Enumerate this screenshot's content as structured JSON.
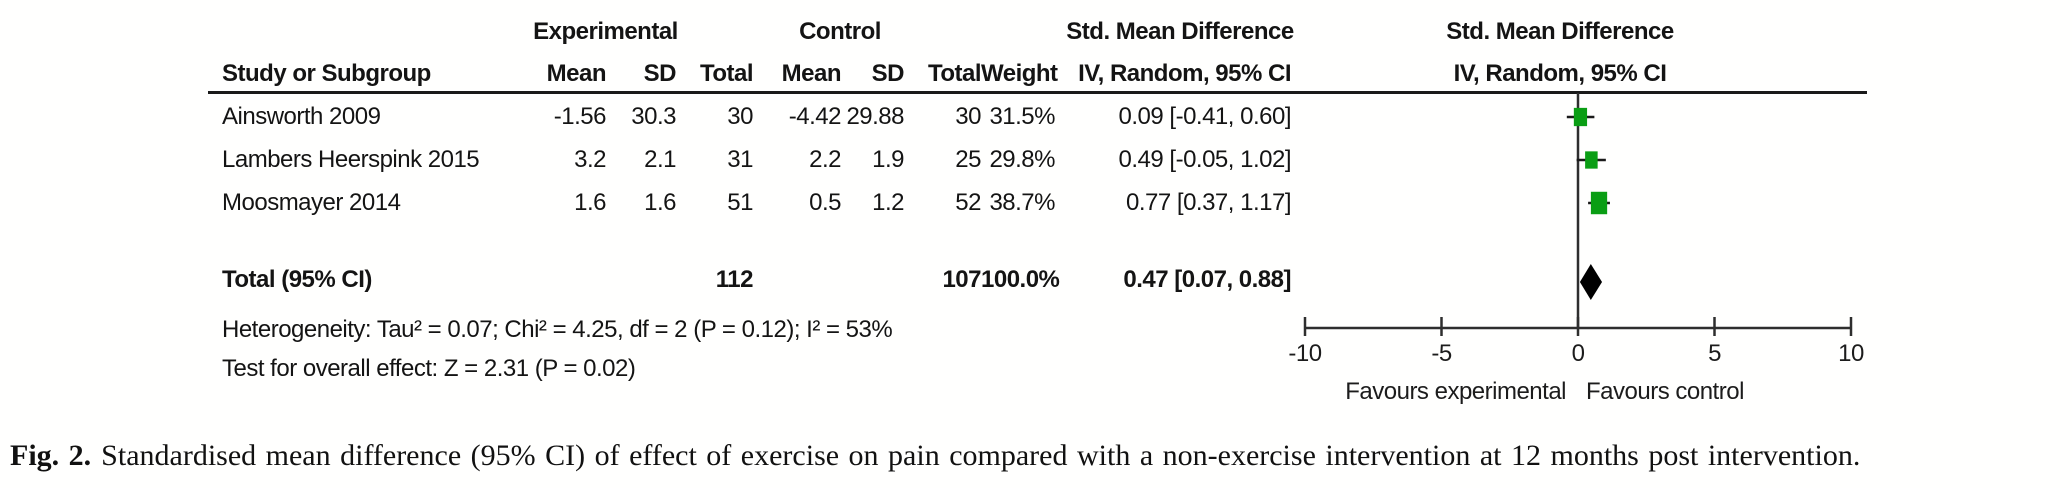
{
  "figure": {
    "caption_label": "Fig. 2.",
    "caption_text": "Standardised mean difference (95% CI) of effect of exercise on pain compared with a non-exercise intervention at 12 months post intervention."
  },
  "table": {
    "group_headers": {
      "experimental": "Experimental",
      "control": "Control",
      "smd_text_col": "Std. Mean Difference"
    },
    "col_headers": {
      "study": "Study or Subgroup",
      "mean": "Mean",
      "sd": "SD",
      "total": "Total",
      "mean2": "Mean",
      "sd2": "SD",
      "total2": "Total",
      "weight": "Weight",
      "ci": "IV, Random, 95% CI"
    },
    "rows": [
      {
        "study": "Ainsworth 2009",
        "mean_e": "-1.56",
        "sd_e": "30.3",
        "total_e": "30",
        "mean_c": "-4.42",
        "sd_c": "29.88",
        "total_c": "30",
        "weight": "31.5%",
        "ci_text": "0.09 [-0.41, 0.60]"
      },
      {
        "study": "Lambers Heerspink 2015",
        "mean_e": "3.2",
        "sd_e": "2.1",
        "total_e": "31",
        "mean_c": "2.2",
        "sd_c": "1.9",
        "total_c": "25",
        "weight": "29.8%",
        "ci_text": "0.49 [-0.05, 1.02]"
      },
      {
        "study": "Moosmayer 2014",
        "mean_e": "1.6",
        "sd_e": "1.6",
        "total_e": "51",
        "mean_c": "0.5",
        "sd_c": "1.2",
        "total_c": "52",
        "weight": "38.7%",
        "ci_text": "0.77 [0.37, 1.17]"
      }
    ],
    "total_row": {
      "label": "Total (95% CI)",
      "total_e": "112",
      "total_c": "107",
      "weight": "100.0%",
      "ci_text": "0.47 [0.07, 0.88]"
    },
    "heterogeneity": "Heterogeneity: Tau² = 0.07; Chi² = 4.25, df = 2 (P = 0.12); I² = 53%",
    "overall_effect": "Test for overall effect: Z = 2.31 (P = 0.02)"
  },
  "plot": {
    "header_line1": "Std. Mean Difference",
    "header_line2": "IV, Random, 95% CI",
    "favours_left": "Favours experimental",
    "favours_right": "Favours control"
  },
  "chart_data": {
    "type": "forest",
    "effect_measure": "Std. Mean Difference",
    "model": "IV, Random, 95% CI",
    "xlim": [
      -10,
      10
    ],
    "axis_ticks": [
      -10,
      -5,
      0,
      5,
      10
    ],
    "studies": [
      {
        "name": "Ainsworth 2009",
        "smd": 0.09,
        "ci_low": -0.41,
        "ci_high": 0.6,
        "weight_pct": 31.5
      },
      {
        "name": "Lambers Heerspink 2015",
        "smd": 0.49,
        "ci_low": -0.05,
        "ci_high": 1.02,
        "weight_pct": 29.8
      },
      {
        "name": "Moosmayer 2014",
        "smd": 0.77,
        "ci_low": 0.37,
        "ci_high": 1.17,
        "weight_pct": 38.7
      }
    ],
    "total": {
      "label": "Total (95% CI)",
      "smd": 0.47,
      "ci_low": 0.07,
      "ci_high": 0.88,
      "weight_pct": 100.0
    },
    "heterogeneity": {
      "tau2": 0.07,
      "chi2": 4.25,
      "df": 2,
      "p": 0.12,
      "i2_pct": 53
    },
    "overall_effect": {
      "z": 2.31,
      "p": 0.02
    },
    "favours_left": "Favours experimental",
    "favours_right": "Favours control"
  },
  "colors": {
    "square_green": "#0a9e14",
    "diamond_black": "#000000",
    "line": "#2e2e2e",
    "text": "#1c1c1c"
  }
}
